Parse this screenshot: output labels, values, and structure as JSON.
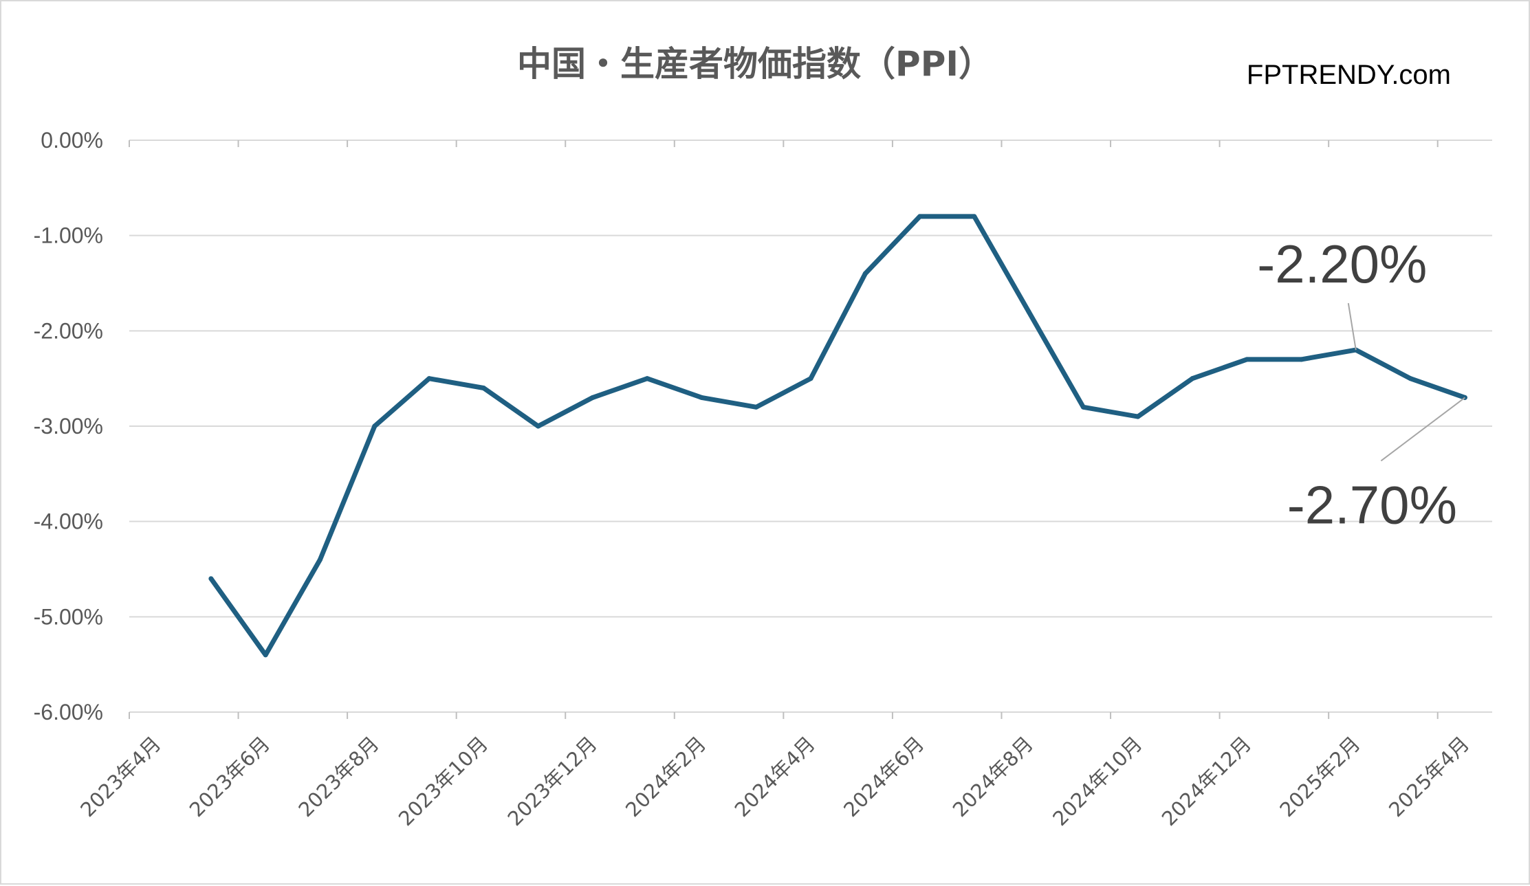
{
  "title": "中国・生産者物価指数（PPI）",
  "watermark": "FPTRENDY.com",
  "colors": {
    "series": "#1f5f82",
    "grid": "#d9d9d9",
    "text": "#595959",
    "callout": "#404040",
    "leader": "#a6a6a6"
  },
  "chart_data": {
    "type": "line",
    "title": "中国・生産者物価指数（PPI）",
    "xlabel": "",
    "ylabel": "",
    "grid": true,
    "legend": "none",
    "ylim": [
      -6,
      0
    ],
    "y_tick_labels": [
      "0.00%",
      "-1.00%",
      "-2.00%",
      "-3.00%",
      "-4.00%",
      "-5.00%",
      "-6.00%"
    ],
    "x_tick_labels": [
      "2023年4月",
      "2023年6月",
      "2023年8月",
      "2023年10月",
      "2023年12月",
      "2024年2月",
      "2024年4月",
      "2024年6月",
      "2024年8月",
      "2024年10月",
      "2024年12月",
      "2025年2月",
      "2025年4月"
    ],
    "x": [
      "2023年4月",
      "2023年5月",
      "2023年6月",
      "2023年7月",
      "2023年8月",
      "2023年9月",
      "2023年10月",
      "2023年11月",
      "2023年12月",
      "2024年1月",
      "2024年2月",
      "2024年3月",
      "2024年4月",
      "2024年5月",
      "2024年6月",
      "2024年7月",
      "2024年8月",
      "2024年9月",
      "2024年10月",
      "2024年11月",
      "2024年12月",
      "2025年1月",
      "2025年2月",
      "2025年3月",
      "2025年4月"
    ],
    "series": [
      {
        "values": [
          null,
          -4.6,
          -5.4,
          -4.4,
          -3.0,
          -2.5,
          -2.6,
          -3.0,
          -2.7,
          -2.5,
          -2.7,
          -2.8,
          -2.5,
          -1.4,
          -0.8,
          -0.8,
          -1.8,
          -2.8,
          -2.9,
          -2.5,
          -2.3,
          -2.3,
          -2.2,
          -2.5,
          -2.7
        ]
      }
    ],
    "annotations": [
      {
        "x": "2025年2月",
        "value": -2.2,
        "text": "-2.20%",
        "placement": "above"
      },
      {
        "x": "2025年4月",
        "value": -2.7,
        "text": "-2.70%",
        "placement": "below-left"
      }
    ]
  }
}
